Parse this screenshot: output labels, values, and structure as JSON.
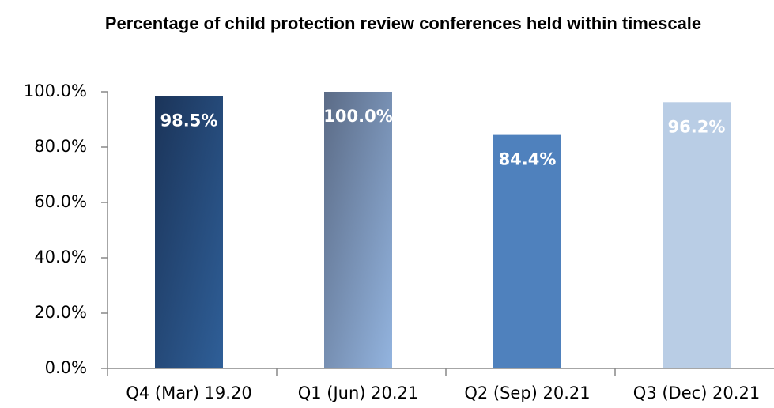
{
  "chart_data": {
    "type": "bar",
    "title": "Percentage of child protection review conferences held within timescale",
    "categories": [
      "Q4 (Mar) 19.20",
      "Q1 (Jun) 20.21",
      "Q2 (Sep) 20.21",
      "Q3 (Dec) 20.21"
    ],
    "values": [
      98.5,
      100,
      84.4,
      96.2
    ],
    "value_labels": [
      "98.5%",
      "100.0%",
      "84.4%",
      "96.2%"
    ],
    "colors": [
      [
        "#1b3459",
        "#2f5f98"
      ],
      [
        "#5b6b86",
        "#93b4df"
      ],
      "#4f81bd",
      "#b9cde5"
    ],
    "ylim": [
      0,
      100
    ],
    "yticks": [
      {
        "value": 0,
        "label": "0.0%"
      },
      {
        "value": 20,
        "label": "20.0%"
      },
      {
        "value": 40,
        "label": "40.0%"
      },
      {
        "value": 60,
        "label": "60.0%"
      },
      {
        "value": 80,
        "label": "80.0%"
      },
      {
        "value": 100,
        "label": "100.0%"
      }
    ],
    "grid": false
  }
}
